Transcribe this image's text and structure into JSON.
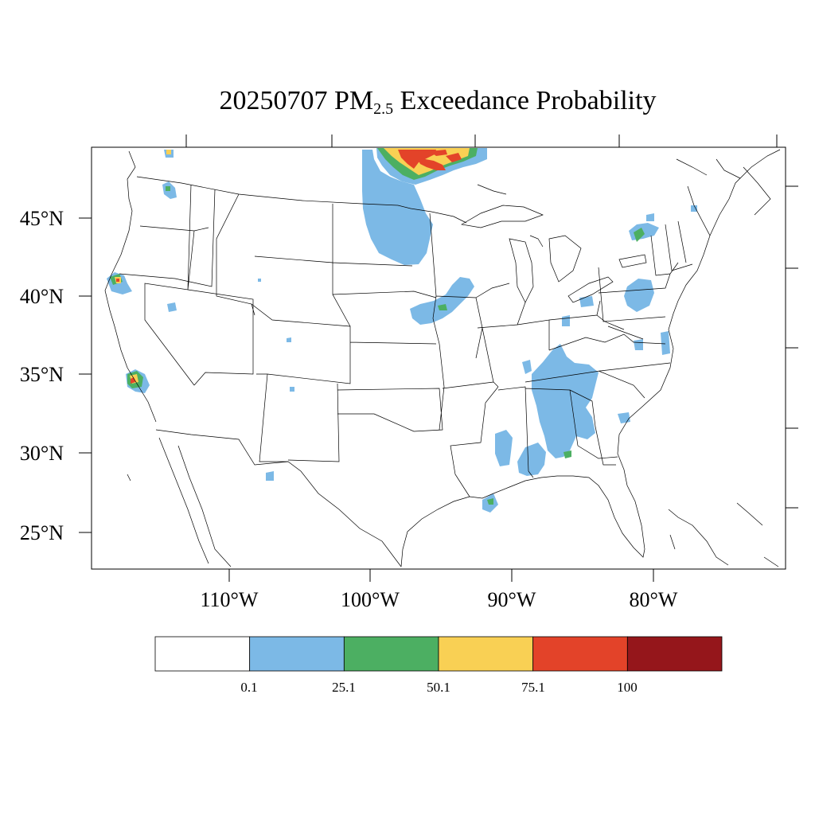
{
  "title": {
    "date": "20250707",
    "pm_prefix": "PM",
    "pm_subscript": "2.5",
    "suffix": "Exceedance Probability"
  },
  "axes": {
    "lat_labels": [
      "45°N",
      "40°N",
      "35°N",
      "30°N",
      "25°N"
    ],
    "lon_labels": [
      "110°W",
      "100°W",
      "90°W",
      "80°W"
    ]
  },
  "colorbar": {
    "colors": [
      "#ffffff",
      "#7cb9e6",
      "#4caf62",
      "#f9d054",
      "#e34329",
      "#95161b"
    ],
    "tick_labels": [
      "0.1",
      "25.1",
      "50.1",
      "75.1",
      "100"
    ]
  },
  "legend_colors": {
    "blue": "#7cb9e6",
    "green": "#4caf62",
    "yellow": "#f9d054",
    "red": "#e34329",
    "darkred": "#95161b"
  }
}
